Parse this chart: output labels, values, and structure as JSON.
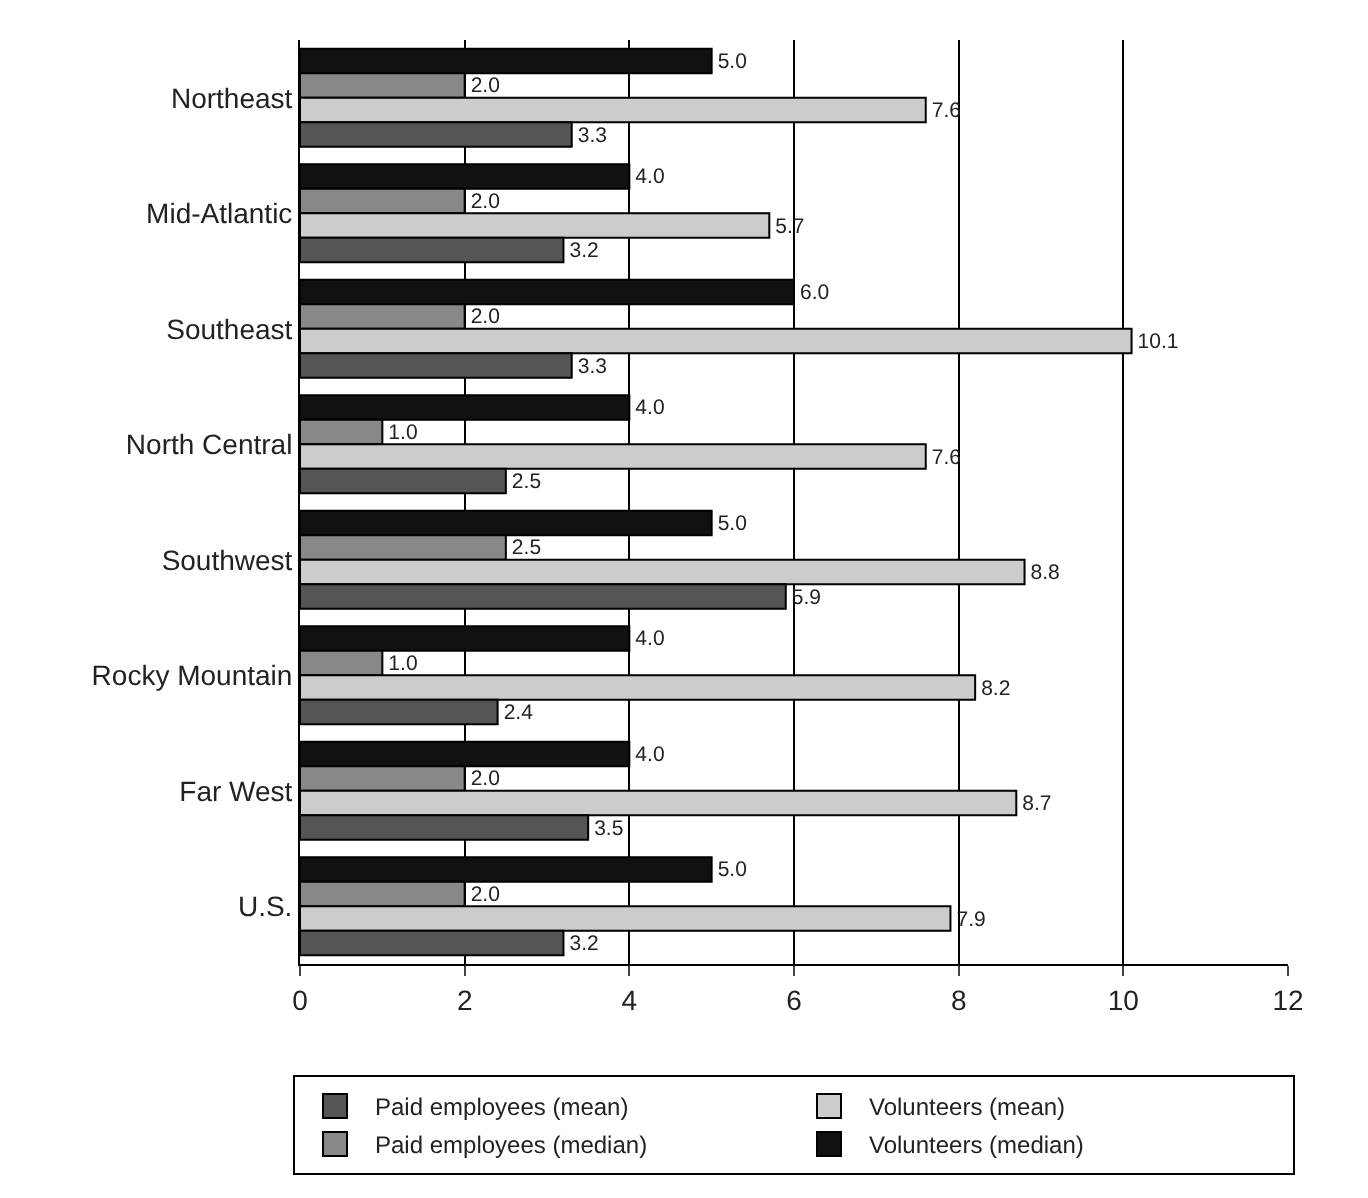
{
  "chart_data": {
    "type": "bar",
    "orientation": "horizontal",
    "categories": [
      "Northeast",
      "Mid-Atlantic",
      "Southeast",
      "North Central",
      "Southwest",
      "Rocky Mountain",
      "Far West",
      "U.S."
    ],
    "series": [
      {
        "name": "Paid employees (mean)",
        "color": "#555555",
        "values": [
          3.3,
          3.2,
          3.3,
          2.5,
          5.9,
          2.4,
          3.5,
          3.2
        ],
        "value_labels": [
          "3.3",
          "3.2",
          "3.3",
          "2.5",
          "5.9",
          "2.4",
          "3.5",
          "3.2"
        ]
      },
      {
        "name": "Volunteers (mean)",
        "color": "#cccccc",
        "values": [
          7.6,
          5.7,
          10.1,
          7.6,
          8.8,
          8.2,
          8.7,
          7.9
        ],
        "value_labels": [
          "7.6",
          "5.7",
          "10.1",
          "7.6",
          "8.8",
          "8.2",
          "8.7",
          "7.9"
        ]
      },
      {
        "name": "Paid employees (median)",
        "color": "#888888",
        "values": [
          2,
          2,
          2,
          1,
          2.5,
          1,
          2,
          2
        ],
        "value_labels": [
          "2.0",
          "2.0",
          "2.0",
          "1.0",
          "2.5",
          "1.0",
          "2.0",
          "2.0"
        ]
      },
      {
        "name": "Volunteers (median)",
        "color": "#111111",
        "values": [
          5,
          4,
          6,
          4,
          5,
          4,
          4,
          5
        ],
        "value_labels": [
          "5.0",
          "4.0",
          "6.0",
          "4.0",
          "5.0",
          "4.0",
          "4.0",
          "5.0"
        ]
      }
    ],
    "xlim": [
      0,
      12
    ],
    "xticks": [
      0,
      2,
      4,
      6,
      8,
      10,
      12
    ],
    "grid": "x",
    "legend": "bottom"
  }
}
